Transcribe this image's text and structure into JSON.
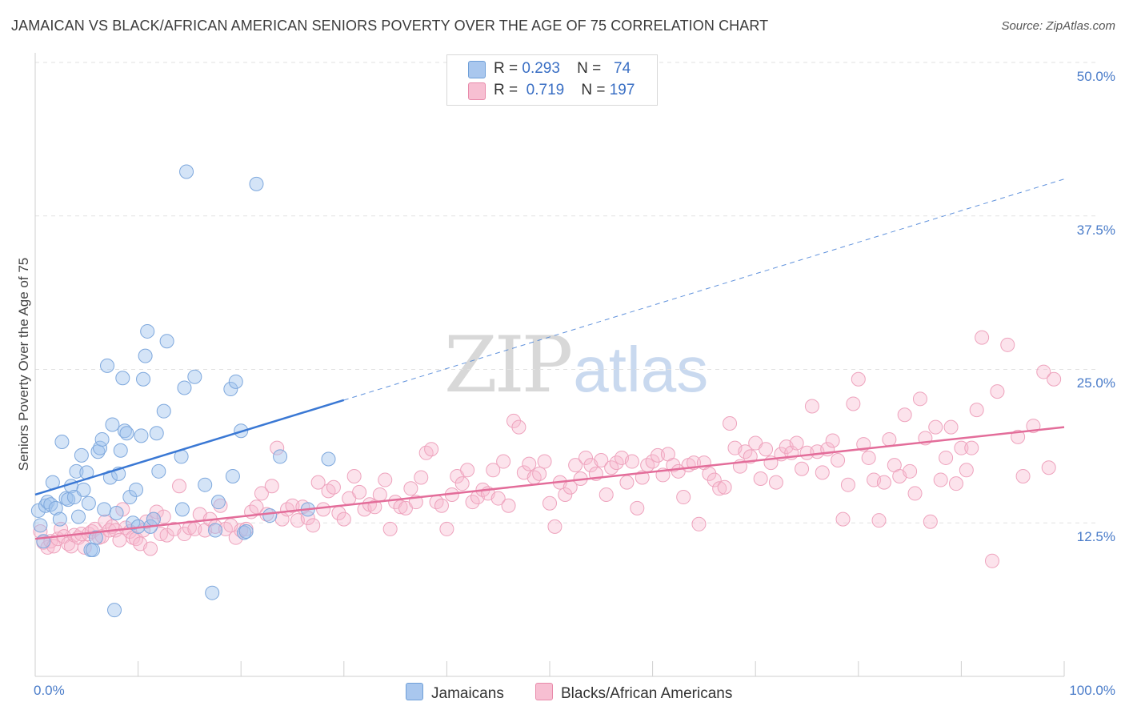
{
  "title": "JAMAICAN VS BLACK/AFRICAN AMERICAN SENIORS POVERTY OVER THE AGE OF 75 CORRELATION CHART",
  "source": "Source: ZipAtlas.com",
  "watermark": {
    "zip": "ZIP",
    "atlas": "atlas"
  },
  "legend_top": [
    {
      "r_label": "R =",
      "r_value": "0.293",
      "n_label": "N =",
      "n_value": "74",
      "color": "#a9c7ee",
      "border": "#6f9fd8"
    },
    {
      "r_label": "R =",
      "r_value": "0.719",
      "n_label": "N =",
      "n_value": "197",
      "color": "#f7bfd2",
      "border": "#e88aaa"
    }
  ],
  "legend_bottom": [
    {
      "label": "Jamaicans",
      "color": "#a9c7ee",
      "border": "#6f9fd8"
    },
    {
      "label": "Blacks/African Americans",
      "color": "#f7bfd2",
      "border": "#e88aaa"
    }
  ],
  "colors": {
    "blue": "#3a78d4",
    "pink": "#e36d9a",
    "blue_fill": "rgba(160,195,238,0.45)",
    "pink_fill": "rgba(247,186,208,0.40)",
    "grid": "#e2e2e2",
    "axis_text": "#4a7cc9"
  },
  "chart_data": {
    "type": "scatter",
    "title": "JAMAICAN VS BLACK/AFRICAN AMERICAN SENIORS POVERTY OVER THE AGE OF 75 CORRELATION CHART",
    "xlabel": "",
    "ylabel": "Seniors Poverty Over the Age of 75",
    "xlim": [
      0,
      100
    ],
    "ylim": [
      0,
      50
    ],
    "x_tick_labels": [
      "0.0%",
      "100.0%"
    ],
    "y_ticks": [
      12.5,
      25.0,
      37.5,
      50.0
    ],
    "y_tick_labels": [
      "12.5%",
      "25.0%",
      "37.5%",
      "50.0%"
    ],
    "grid": true,
    "legend_position": "top-center",
    "series": [
      {
        "name": "Jamaicans",
        "r": 0.293,
        "n": 74,
        "trend": {
          "x0": 0,
          "y0": 14.8,
          "x1": 30,
          "y1": 22.5,
          "dashed_to_x": 100,
          "dashed_to_y": 40.5
        },
        "points": [
          [
            0.3,
            13.5
          ],
          [
            0.5,
            12.3
          ],
          [
            0.8,
            11.0
          ],
          [
            1.0,
            13.9
          ],
          [
            1.2,
            14.2
          ],
          [
            1.5,
            14.0
          ],
          [
            1.7,
            15.8
          ],
          [
            2.0,
            13.7
          ],
          [
            2.4,
            12.8
          ],
          [
            2.6,
            19.1
          ],
          [
            3.0,
            14.5
          ],
          [
            3.2,
            14.4
          ],
          [
            3.5,
            15.5
          ],
          [
            3.8,
            14.6
          ],
          [
            4.0,
            16.7
          ],
          [
            4.2,
            13.0
          ],
          [
            4.5,
            18.0
          ],
          [
            4.7,
            15.2
          ],
          [
            5.0,
            16.6
          ],
          [
            5.2,
            14.1
          ],
          [
            5.4,
            10.3
          ],
          [
            5.6,
            10.3
          ],
          [
            5.9,
            11.3
          ],
          [
            6.1,
            18.3
          ],
          [
            6.3,
            18.6
          ],
          [
            6.5,
            19.3
          ],
          [
            6.7,
            13.6
          ],
          [
            7.0,
            25.3
          ],
          [
            7.3,
            16.2
          ],
          [
            7.5,
            20.5
          ],
          [
            7.7,
            5.4
          ],
          [
            7.9,
            13.3
          ],
          [
            8.1,
            16.5
          ],
          [
            8.3,
            18.4
          ],
          [
            8.5,
            24.3
          ],
          [
            8.7,
            20.0
          ],
          [
            8.9,
            19.8
          ],
          [
            9.2,
            14.6
          ],
          [
            9.5,
            12.5
          ],
          [
            9.8,
            15.2
          ],
          [
            10.0,
            12.2
          ],
          [
            10.3,
            19.6
          ],
          [
            10.5,
            24.2
          ],
          [
            10.7,
            26.1
          ],
          [
            10.9,
            28.1
          ],
          [
            11.2,
            12.2
          ],
          [
            11.5,
            12.8
          ],
          [
            11.8,
            19.8
          ],
          [
            12.0,
            16.7
          ],
          [
            12.5,
            21.6
          ],
          [
            12.8,
            27.3
          ],
          [
            14.2,
            17.9
          ],
          [
            14.3,
            13.6
          ],
          [
            14.5,
            23.5
          ],
          [
            14.7,
            41.1
          ],
          [
            15.5,
            24.4
          ],
          [
            16.5,
            15.6
          ],
          [
            17.2,
            6.8
          ],
          [
            17.5,
            11.9
          ],
          [
            17.8,
            14.2
          ],
          [
            19.0,
            23.4
          ],
          [
            19.2,
            16.3
          ],
          [
            19.5,
            24.0
          ],
          [
            20.0,
            20.0
          ],
          [
            20.3,
            11.7
          ],
          [
            20.5,
            11.8
          ],
          [
            21.5,
            40.1
          ],
          [
            22.8,
            13.1
          ],
          [
            23.8,
            17.9
          ],
          [
            26.5,
            13.6
          ],
          [
            28.5,
            17.7
          ]
        ]
      },
      {
        "name": "Blacks/African Americans",
        "r": 0.719,
        "n": 197,
        "trend": {
          "x0": 0,
          "y0": 11.2,
          "x1": 100,
          "y1": 20.3
        },
        "points": [
          [
            0.5,
            11.8
          ],
          [
            0.8,
            10.9
          ],
          [
            1.2,
            10.5
          ],
          [
            1.5,
            11.0
          ],
          [
            1.8,
            10.6
          ],
          [
            2.2,
            11.2
          ],
          [
            2.5,
            12.0
          ],
          [
            2.8,
            11.4
          ],
          [
            3.2,
            10.8
          ],
          [
            3.5,
            10.6
          ],
          [
            3.8,
            11.5
          ],
          [
            4.2,
            11.3
          ],
          [
            4.5,
            11.6
          ],
          [
            4.8,
            10.5
          ],
          [
            5.2,
            11.6
          ],
          [
            5.5,
            11.8
          ],
          [
            5.8,
            12.0
          ],
          [
            6.2,
            11.3
          ],
          [
            6.5,
            11.4
          ],
          [
            6.8,
            12.6
          ],
          [
            7.2,
            11.9
          ],
          [
            7.5,
            12.2
          ],
          [
            7.8,
            11.9
          ],
          [
            8.2,
            11.1
          ],
          [
            8.5,
            13.6
          ],
          [
            8.8,
            12.1
          ],
          [
            9.2,
            11.8
          ],
          [
            9.5,
            11.3
          ],
          [
            9.8,
            11.2
          ],
          [
            10.2,
            10.8
          ],
          [
            10.5,
            11.9
          ],
          [
            10.8,
            12.6
          ],
          [
            11.2,
            10.4
          ],
          [
            11.5,
            12.8
          ],
          [
            11.8,
            13.4
          ],
          [
            12.2,
            11.6
          ],
          [
            12.5,
            13.0
          ],
          [
            12.8,
            11.5
          ],
          [
            13.5,
            12.0
          ],
          [
            14.0,
            15.5
          ],
          [
            14.5,
            11.6
          ],
          [
            15.0,
            12.1
          ],
          [
            15.5,
            12.0
          ],
          [
            16.0,
            13.2
          ],
          [
            16.5,
            11.9
          ],
          [
            17.0,
            12.8
          ],
          [
            17.5,
            12.2
          ],
          [
            18.0,
            13.9
          ],
          [
            18.5,
            12.0
          ],
          [
            19.0,
            12.3
          ],
          [
            19.5,
            11.3
          ],
          [
            20.0,
            11.9
          ],
          [
            20.5,
            12.0
          ],
          [
            21.0,
            13.4
          ],
          [
            21.5,
            13.8
          ],
          [
            22.0,
            14.9
          ],
          [
            22.5,
            13.2
          ],
          [
            23.0,
            15.5
          ],
          [
            23.5,
            18.6
          ],
          [
            24.0,
            12.8
          ],
          [
            24.5,
            13.6
          ],
          [
            25.0,
            13.9
          ],
          [
            25.5,
            12.7
          ],
          [
            26.0,
            13.8
          ],
          [
            26.5,
            12.9
          ],
          [
            27.0,
            12.3
          ],
          [
            27.5,
            15.8
          ],
          [
            28.0,
            13.6
          ],
          [
            28.5,
            15.1
          ],
          [
            29.0,
            15.4
          ],
          [
            29.5,
            13.3
          ],
          [
            30.0,
            12.8
          ],
          [
            30.5,
            14.5
          ],
          [
            31.0,
            16.3
          ],
          [
            31.5,
            15.0
          ],
          [
            32.0,
            13.6
          ],
          [
            32.5,
            14.0
          ],
          [
            33.0,
            13.8
          ],
          [
            33.5,
            14.8
          ],
          [
            34.0,
            16.0
          ],
          [
            34.5,
            12.0
          ],
          [
            35.0,
            14.2
          ],
          [
            35.5,
            13.8
          ],
          [
            36.0,
            13.7
          ],
          [
            36.5,
            15.3
          ],
          [
            37.0,
            14.2
          ],
          [
            37.5,
            16.2
          ],
          [
            38.0,
            18.2
          ],
          [
            38.5,
            18.5
          ],
          [
            39.0,
            14.2
          ],
          [
            39.5,
            13.9
          ],
          [
            40.0,
            12.0
          ],
          [
            40.5,
            14.8
          ],
          [
            41.0,
            16.3
          ],
          [
            41.5,
            15.7
          ],
          [
            42.0,
            16.8
          ],
          [
            42.5,
            14.2
          ],
          [
            43.0,
            14.6
          ],
          [
            43.5,
            15.2
          ],
          [
            44.0,
            14.9
          ],
          [
            44.5,
            16.8
          ],
          [
            45.0,
            14.5
          ],
          [
            45.5,
            17.5
          ],
          [
            46.0,
            13.9
          ],
          [
            46.5,
            20.8
          ],
          [
            47.0,
            20.3
          ],
          [
            47.5,
            16.6
          ],
          [
            48.0,
            17.3
          ],
          [
            48.5,
            16.2
          ],
          [
            49.0,
            16.5
          ],
          [
            49.5,
            17.5
          ],
          [
            50.0,
            14.1
          ],
          [
            50.5,
            12.2
          ],
          [
            51.0,
            15.8
          ],
          [
            51.5,
            14.8
          ],
          [
            52.0,
            15.4
          ],
          [
            52.5,
            17.2
          ],
          [
            53.0,
            16.1
          ],
          [
            53.5,
            17.8
          ],
          [
            54.0,
            17.2
          ],
          [
            54.5,
            16.5
          ],
          [
            55.0,
            17.6
          ],
          [
            55.5,
            14.8
          ],
          [
            56.0,
            17.0
          ],
          [
            56.5,
            17.4
          ],
          [
            57.0,
            17.8
          ],
          [
            57.5,
            15.8
          ],
          [
            58.0,
            17.5
          ],
          [
            58.5,
            13.7
          ],
          [
            59.0,
            16.2
          ],
          [
            59.5,
            17.2
          ],
          [
            60.0,
            17.5
          ],
          [
            60.5,
            18.0
          ],
          [
            61.0,
            16.4
          ],
          [
            61.5,
            18.1
          ],
          [
            62.0,
            17.2
          ],
          [
            62.5,
            16.7
          ],
          [
            63.0,
            14.6
          ],
          [
            63.5,
            17.2
          ],
          [
            64.0,
            17.4
          ],
          [
            64.5,
            12.4
          ],
          [
            65.0,
            17.4
          ],
          [
            65.5,
            16.5
          ],
          [
            66.0,
            16.0
          ],
          [
            66.5,
            15.3
          ],
          [
            67.0,
            15.4
          ],
          [
            67.5,
            20.6
          ],
          [
            68.0,
            18.6
          ],
          [
            68.5,
            17.1
          ],
          [
            69.0,
            18.3
          ],
          [
            69.5,
            17.9
          ],
          [
            70.0,
            19.0
          ],
          [
            70.5,
            16.1
          ],
          [
            71.0,
            18.5
          ],
          [
            71.5,
            17.4
          ],
          [
            72.0,
            15.8
          ],
          [
            72.5,
            18.1
          ],
          [
            73.0,
            18.7
          ],
          [
            73.5,
            18.2
          ],
          [
            74.0,
            19.0
          ],
          [
            74.5,
            16.9
          ],
          [
            75.0,
            18.2
          ],
          [
            75.5,
            22.0
          ],
          [
            76.0,
            18.3
          ],
          [
            76.5,
            16.6
          ],
          [
            77.0,
            18.5
          ],
          [
            77.5,
            19.2
          ],
          [
            78.0,
            17.6
          ],
          [
            78.5,
            12.8
          ],
          [
            79.0,
            15.6
          ],
          [
            79.5,
            22.2
          ],
          [
            80.0,
            24.2
          ],
          [
            80.5,
            18.9
          ],
          [
            81.0,
            17.8
          ],
          [
            81.5,
            16.0
          ],
          [
            82.0,
            12.7
          ],
          [
            82.5,
            15.8
          ],
          [
            83.0,
            19.3
          ],
          [
            83.5,
            17.2
          ],
          [
            84.0,
            16.3
          ],
          [
            84.5,
            21.3
          ],
          [
            85.0,
            16.7
          ],
          [
            85.5,
            14.9
          ],
          [
            86.0,
            22.6
          ],
          [
            86.5,
            19.4
          ],
          [
            87.0,
            12.6
          ],
          [
            87.5,
            20.3
          ],
          [
            88.0,
            16.0
          ],
          [
            88.5,
            17.8
          ],
          [
            89.0,
            20.3
          ],
          [
            89.5,
            15.7
          ],
          [
            90.0,
            18.6
          ],
          [
            90.5,
            16.8
          ],
          [
            91.0,
            18.6
          ],
          [
            91.5,
            21.7
          ],
          [
            92.0,
            27.6
          ],
          [
            93.0,
            9.4
          ],
          [
            93.5,
            23.2
          ],
          [
            94.5,
            27.0
          ],
          [
            95.5,
            19.5
          ],
          [
            96.0,
            16.3
          ],
          [
            97.0,
            20.4
          ],
          [
            98.0,
            24.8
          ],
          [
            98.5,
            17.0
          ],
          [
            99.0,
            24.2
          ]
        ]
      }
    ]
  }
}
